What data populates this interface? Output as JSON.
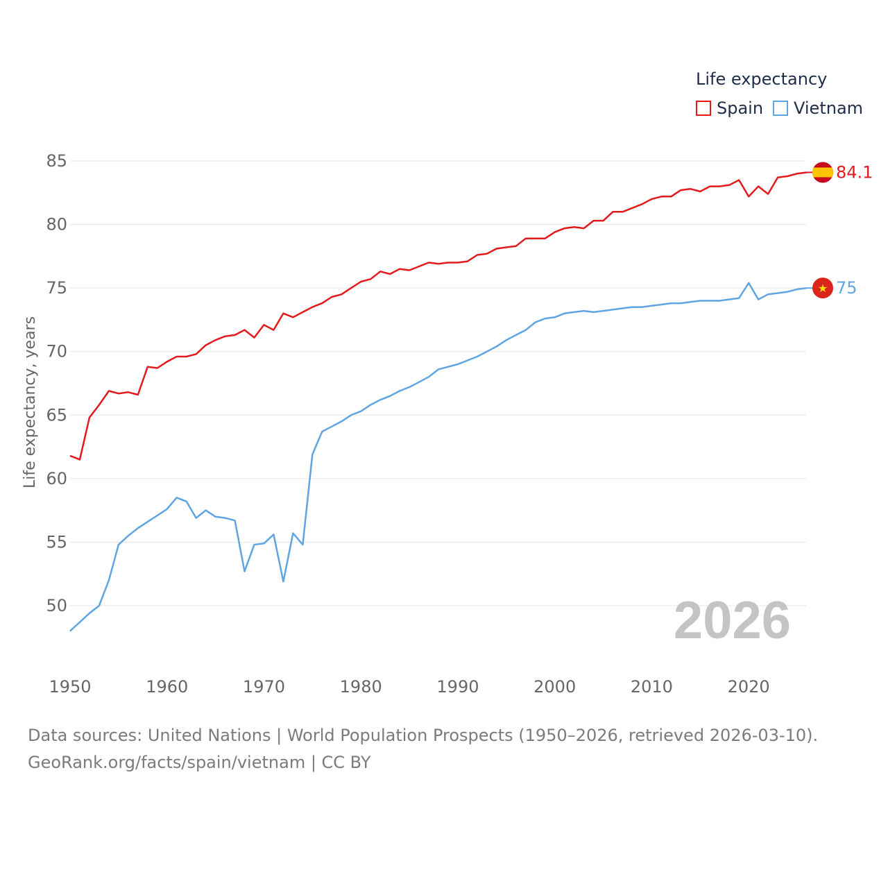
{
  "legend": {
    "title": "Life expectancy",
    "items": [
      {
        "name": "Spain",
        "color": "#e31a1c"
      },
      {
        "name": "Vietnam",
        "color": "#5fa4e3"
      }
    ]
  },
  "year_watermark": "2026",
  "footer": {
    "line1": "Data sources: United Nations | World Population Prospects (1950–2026, retrieved 2026-03-10).",
    "line2": "GeoRank.org/facts/spain/vietnam | CC BY"
  },
  "chart_data": {
    "type": "line",
    "title": "Life expectancy",
    "xlabel": "",
    "ylabel": "Life expectancy, years",
    "xlim": [
      1950,
      2026
    ],
    "ylim": [
      47,
      86
    ],
    "x_ticks": [
      1950,
      1960,
      1970,
      1980,
      1990,
      2000,
      2010,
      2020
    ],
    "y_ticks": [
      50,
      55,
      60,
      65,
      70,
      75,
      80,
      85
    ],
    "grid": true,
    "x": [
      1950,
      1951,
      1952,
      1953,
      1954,
      1955,
      1956,
      1957,
      1958,
      1959,
      1960,
      1961,
      1962,
      1963,
      1964,
      1965,
      1966,
      1967,
      1968,
      1969,
      1970,
      1971,
      1972,
      1973,
      1974,
      1975,
      1976,
      1977,
      1978,
      1979,
      1980,
      1981,
      1982,
      1983,
      1984,
      1985,
      1986,
      1987,
      1988,
      1989,
      1990,
      1991,
      1992,
      1993,
      1994,
      1995,
      1996,
      1997,
      1998,
      1999,
      2000,
      2001,
      2002,
      2003,
      2004,
      2005,
      2006,
      2007,
      2008,
      2009,
      2010,
      2011,
      2012,
      2013,
      2014,
      2015,
      2016,
      2017,
      2018,
      2019,
      2020,
      2021,
      2022,
      2023,
      2024,
      2025,
      2026
    ],
    "series": [
      {
        "name": "Spain",
        "color": "#e31a1c",
        "end_label": "84.1",
        "values": [
          61.8,
          61.5,
          64.8,
          65.8,
          66.9,
          66.7,
          66.8,
          66.6,
          68.8,
          68.7,
          69.2,
          69.6,
          69.6,
          69.8,
          70.5,
          70.9,
          71.2,
          71.3,
          71.7,
          71.1,
          72.1,
          71.7,
          73.0,
          72.7,
          73.1,
          73.5,
          73.8,
          74.3,
          74.5,
          75.0,
          75.5,
          75.7,
          76.3,
          76.1,
          76.5,
          76.4,
          76.7,
          77.0,
          76.9,
          77.0,
          77.0,
          77.1,
          77.6,
          77.7,
          78.1,
          78.2,
          78.3,
          78.9,
          78.9,
          78.9,
          79.4,
          79.7,
          79.8,
          79.7,
          80.3,
          80.3,
          81.0,
          81.0,
          81.3,
          81.6,
          82.0,
          82.2,
          82.2,
          82.7,
          82.8,
          82.6,
          83.0,
          83.0,
          83.1,
          83.5,
          82.2,
          83.0,
          82.4,
          83.7,
          83.8,
          84.0,
          84.1
        ]
      },
      {
        "name": "Vietnam",
        "color": "#5fa4e3",
        "end_label": "75",
        "values": [
          48.0,
          48.7,
          49.4,
          50.0,
          52.0,
          54.8,
          55.5,
          56.1,
          56.6,
          57.1,
          57.6,
          58.5,
          58.2,
          56.9,
          57.5,
          57.0,
          56.9,
          56.7,
          52.7,
          54.8,
          54.9,
          55.6,
          51.9,
          55.7,
          54.8,
          61.9,
          63.7,
          64.1,
          64.5,
          65.0,
          65.3,
          65.8,
          66.2,
          66.5,
          66.9,
          67.2,
          67.6,
          68.0,
          68.6,
          68.8,
          69.0,
          69.3,
          69.6,
          70.0,
          70.4,
          70.9,
          71.3,
          71.7,
          72.3,
          72.6,
          72.7,
          73.0,
          73.1,
          73.2,
          73.1,
          73.2,
          73.3,
          73.4,
          73.5,
          73.5,
          73.6,
          73.7,
          73.8,
          73.8,
          73.9,
          74.0,
          74.0,
          74.0,
          74.1,
          74.2,
          75.4,
          74.1,
          74.5,
          74.6,
          74.7,
          74.9,
          75.0
        ]
      }
    ]
  }
}
